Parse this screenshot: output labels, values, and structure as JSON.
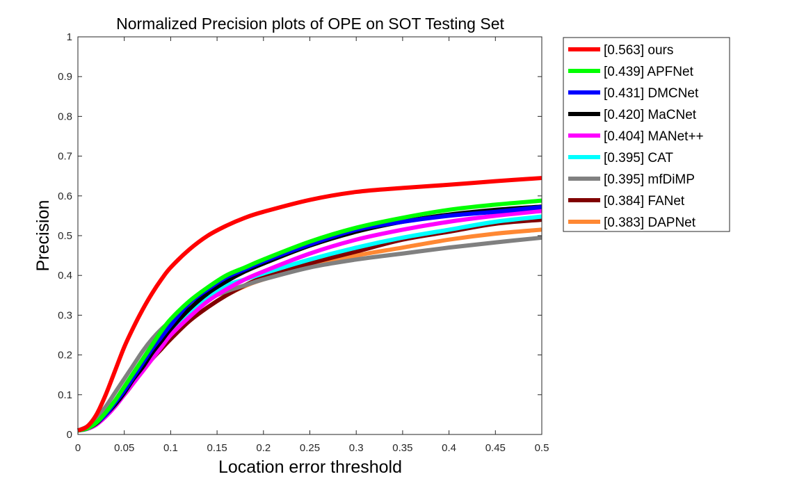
{
  "chart_data": {
    "type": "line",
    "title": "Normalized Precision plots of OPE on SOT Testing Set",
    "xlabel": "Location error threshold",
    "ylabel": "Precision",
    "xlim": [
      0,
      0.5
    ],
    "ylim": [
      0,
      1
    ],
    "xticks": [
      0,
      0.05,
      0.1,
      0.15,
      0.2,
      0.25,
      0.3,
      0.35,
      0.4,
      0.45,
      0.5
    ],
    "xtick_labels": [
      "0",
      "0.05",
      "0.1",
      "0.15",
      "0.2",
      "0.25",
      "0.3",
      "0.35",
      "0.4",
      "0.45",
      "0.5"
    ],
    "yticks": [
      0,
      0.1,
      0.2,
      0.3,
      0.4,
      0.5,
      0.6,
      0.7,
      0.8,
      0.9,
      1
    ],
    "ytick_labels": [
      "0",
      "0.1",
      "0.2",
      "0.3",
      "0.4",
      "0.5",
      "0.6",
      "0.7",
      "0.8",
      "0.9",
      "1"
    ],
    "grid": false,
    "legend_position": "outside-right",
    "x": [
      0,
      0.01,
      0.02,
      0.03,
      0.04,
      0.05,
      0.06,
      0.07,
      0.08,
      0.09,
      0.1,
      0.12,
      0.14,
      0.16,
      0.18,
      0.2,
      0.25,
      0.3,
      0.35,
      0.4,
      0.45,
      0.5
    ],
    "series": [
      {
        "name": "[0.563] ours",
        "color": "#ff0000",
        "values": [
          0.01,
          0.02,
          0.05,
          0.1,
          0.16,
          0.22,
          0.27,
          0.315,
          0.355,
          0.39,
          0.42,
          0.465,
          0.5,
          0.525,
          0.545,
          0.56,
          0.59,
          0.61,
          0.62,
          0.628,
          0.637,
          0.645
        ]
      },
      {
        "name": "[0.439] APFNet",
        "color": "#00ff00",
        "values": [
          0.01,
          0.015,
          0.03,
          0.055,
          0.085,
          0.12,
          0.155,
          0.19,
          0.225,
          0.26,
          0.29,
          0.335,
          0.37,
          0.4,
          0.42,
          0.44,
          0.485,
          0.52,
          0.545,
          0.565,
          0.578,
          0.588
        ]
      },
      {
        "name": "[0.431] DMCNet",
        "color": "#0000ff",
        "values": [
          0.01,
          0.015,
          0.03,
          0.05,
          0.08,
          0.11,
          0.145,
          0.18,
          0.215,
          0.245,
          0.275,
          0.33,
          0.365,
          0.395,
          0.415,
          0.435,
          0.478,
          0.515,
          0.535,
          0.55,
          0.56,
          0.572
        ]
      },
      {
        "name": "[0.420] MaCNet",
        "color": "#000000",
        "values": [
          0.01,
          0.015,
          0.028,
          0.05,
          0.075,
          0.105,
          0.14,
          0.17,
          0.205,
          0.235,
          0.265,
          0.315,
          0.355,
          0.385,
          0.41,
          0.43,
          0.475,
          0.51,
          0.535,
          0.553,
          0.565,
          0.573
        ]
      },
      {
        "name": "[0.404] MANet++",
        "color": "#ff00ff",
        "values": [
          0.01,
          0.014,
          0.025,
          0.045,
          0.07,
          0.1,
          0.13,
          0.16,
          0.19,
          0.22,
          0.25,
          0.295,
          0.335,
          0.365,
          0.39,
          0.41,
          0.455,
          0.49,
          0.515,
          0.535,
          0.55,
          0.562
        ]
      },
      {
        "name": "[0.395] CAT",
        "color": "#00ffff",
        "values": [
          0.01,
          0.014,
          0.028,
          0.05,
          0.075,
          0.105,
          0.135,
          0.165,
          0.195,
          0.225,
          0.255,
          0.305,
          0.345,
          0.375,
          0.39,
          0.405,
          0.44,
          0.47,
          0.495,
          0.515,
          0.535,
          0.548
        ]
      },
      {
        "name": "[0.395] mfDiMP",
        "color": "#808080",
        "values": [
          0.01,
          0.02,
          0.04,
          0.07,
          0.105,
          0.14,
          0.175,
          0.21,
          0.24,
          0.265,
          0.285,
          0.315,
          0.34,
          0.36,
          0.375,
          0.39,
          0.42,
          0.44,
          0.455,
          0.47,
          0.483,
          0.495
        ]
      },
      {
        "name": "[0.384] FANet",
        "color": "#800000",
        "values": [
          0.01,
          0.015,
          0.028,
          0.05,
          0.075,
          0.1,
          0.13,
          0.16,
          0.19,
          0.215,
          0.24,
          0.285,
          0.32,
          0.35,
          0.375,
          0.395,
          0.43,
          0.46,
          0.49,
          0.51,
          0.53,
          0.54
        ]
      },
      {
        "name": "[0.383] DAPNet",
        "color": "#ff8833",
        "values": [
          0.01,
          0.015,
          0.028,
          0.05,
          0.075,
          0.105,
          0.135,
          0.16,
          0.19,
          0.215,
          0.24,
          0.285,
          0.32,
          0.35,
          0.373,
          0.39,
          0.425,
          0.45,
          0.47,
          0.49,
          0.505,
          0.515
        ]
      }
    ]
  }
}
